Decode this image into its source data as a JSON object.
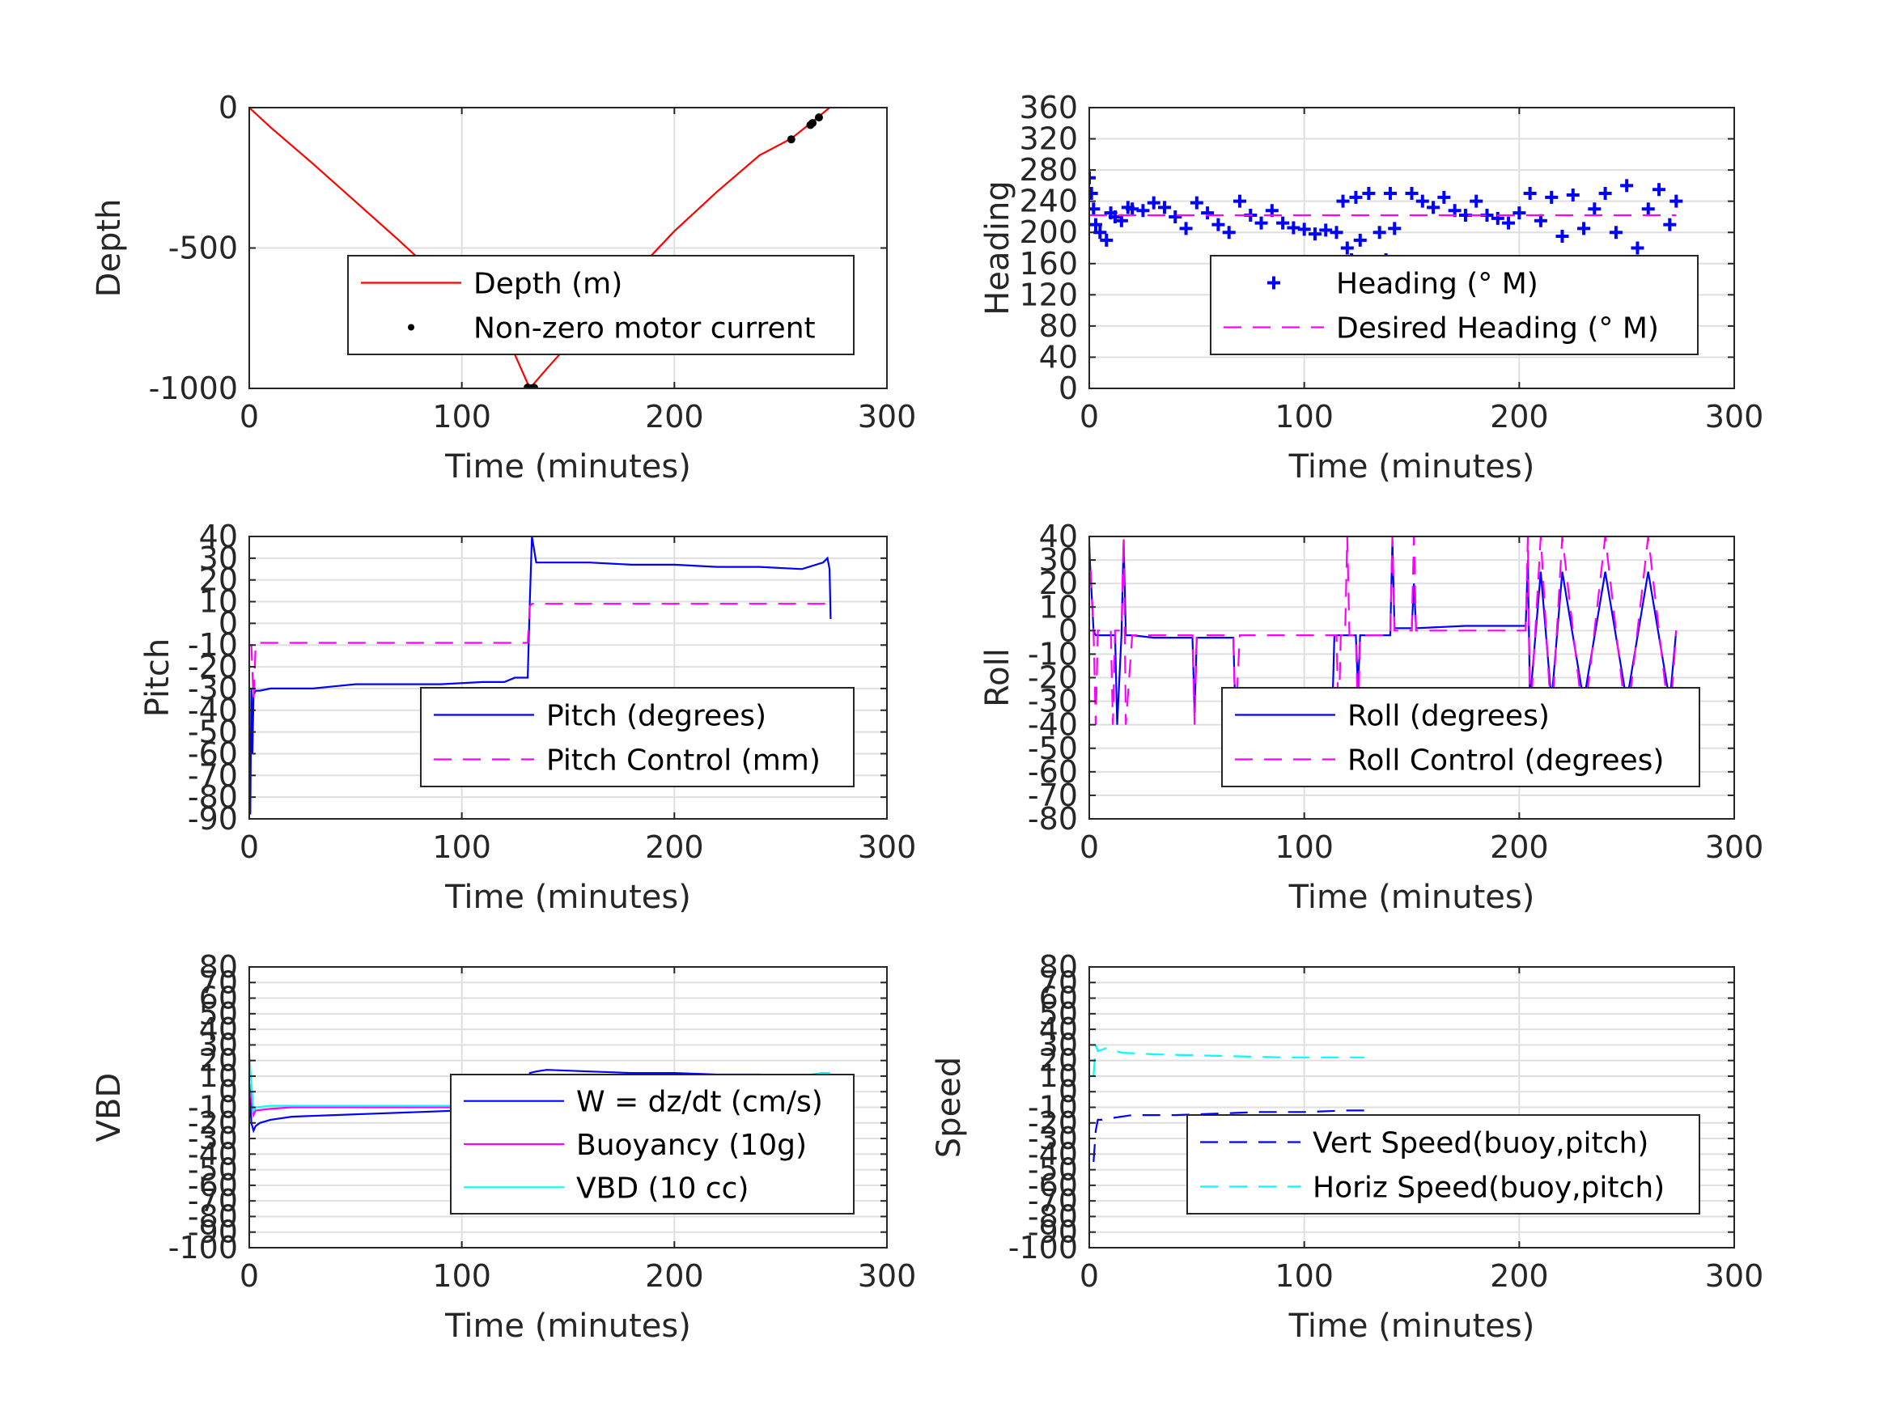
{
  "figure": {
    "background": "#ffffff",
    "colors": {
      "red": "#ff0000",
      "blue": "#0000ff",
      "magenta": "#ff00ff",
      "cyan": "#00ffff",
      "black": "#000000",
      "grid": "#dfdfdf",
      "axis": "#262626"
    }
  },
  "chart_data": [
    {
      "id": "depth",
      "type": "line",
      "xlabel": "Time (minutes)",
      "ylabel": "Depth",
      "xlim": [
        0,
        300
      ],
      "ylim": [
        -1000,
        0
      ],
      "xticks": [
        0,
        100,
        200,
        300
      ],
      "yticks": [
        -1000,
        -500,
        0
      ],
      "grid": true,
      "legend_position": "center-bottom",
      "series": [
        {
          "name": "Depth (m)",
          "style": "solid",
          "color": "#ff0000",
          "x": [
            0,
            10,
            30,
            50,
            70,
            90,
            110,
            125,
            132,
            140,
            160,
            180,
            200,
            220,
            240,
            255,
            265,
            273
          ],
          "y": [
            0,
            -70,
            -200,
            -335,
            -470,
            -610,
            -760,
            -880,
            -1000,
            -930,
            -760,
            -600,
            -440,
            -300,
            -170,
            -110,
            -50,
            0
          ]
        },
        {
          "name": "Non-zero motor current",
          "style": "dots",
          "color": "#000000",
          "x": [
            131,
            132,
            133,
            134,
            255,
            264,
            265,
            268
          ],
          "y": [
            -997,
            -1000,
            -1000,
            -998,
            -113,
            -62,
            -55,
            -35
          ]
        }
      ]
    },
    {
      "id": "heading",
      "type": "scatter",
      "xlabel": "Time (minutes)",
      "ylabel": "Heading",
      "xlim": [
        0,
        300
      ],
      "ylim": [
        0,
        360
      ],
      "xticks": [
        0,
        100,
        200,
        300
      ],
      "yticks": [
        0,
        40,
        80,
        120,
        160,
        200,
        240,
        280,
        320,
        360
      ],
      "grid": true,
      "legend_position": "lower-right",
      "series": [
        {
          "name": "Heading (° M)",
          "style": "plus",
          "color": "#0000ff",
          "x": [
            0,
            1,
            2,
            3,
            5,
            8,
            10,
            12,
            15,
            18,
            20,
            25,
            30,
            35,
            40,
            45,
            50,
            55,
            60,
            65,
            70,
            75,
            80,
            85,
            90,
            95,
            100,
            105,
            110,
            115,
            118,
            120,
            122,
            124,
            126,
            130,
            135,
            138,
            140,
            142,
            145,
            148,
            150,
            155,
            160,
            165,
            170,
            175,
            180,
            185,
            190,
            195,
            200,
            205,
            210,
            215,
            220,
            225,
            230,
            235,
            240,
            245,
            250,
            255,
            260,
            265,
            270,
            273
          ],
          "y": [
            270,
            250,
            230,
            210,
            200,
            190,
            225,
            220,
            215,
            232,
            230,
            228,
            238,
            232,
            220,
            205,
            238,
            225,
            210,
            200,
            240,
            222,
            212,
            228,
            212,
            206,
            204,
            198,
            203,
            200,
            240,
            180,
            165,
            245,
            190,
            250,
            200,
            165,
            250,
            205,
            160,
            150,
            250,
            240,
            232,
            245,
            228,
            222,
            240,
            222,
            218,
            212,
            225,
            250,
            215,
            245,
            195,
            248,
            205,
            230,
            250,
            200,
            260,
            180,
            230,
            255,
            210,
            240
          ]
        },
        {
          "name": "Desired Heading (° M)",
          "style": "dashed",
          "color": "#ff00ff",
          "x": [
            0,
            273
          ],
          "y": [
            222,
            222
          ]
        }
      ]
    },
    {
      "id": "pitch",
      "type": "line",
      "xlabel": "Time (minutes)",
      "ylabel": "Pitch",
      "xlim": [
        0,
        300
      ],
      "ylim": [
        -90,
        40
      ],
      "xticks": [
        0,
        100,
        200,
        300
      ],
      "yticks": [
        -90,
        -80,
        -70,
        -60,
        -50,
        -40,
        -30,
        -20,
        -10,
        0,
        10,
        20,
        30,
        40
      ],
      "grid": true,
      "legend_position": "lower-right",
      "series": [
        {
          "name": "Pitch (degrees)",
          "style": "solid",
          "color": "#0000ff",
          "x": [
            0,
            0.5,
            1,
            1.5,
            2,
            3,
            5,
            10,
            20,
            30,
            40,
            50,
            70,
            90,
            110,
            120,
            125,
            128,
            131,
            132,
            133,
            135,
            140,
            160,
            180,
            200,
            220,
            240,
            260,
            270,
            272,
            273,
            273.5
          ],
          "y": [
            -80,
            -88,
            -30,
            -60,
            -33,
            -31,
            -31,
            -30,
            -30,
            -30,
            -29,
            -28,
            -28,
            -28,
            -27,
            -27,
            -25,
            -25,
            -25,
            10,
            40,
            28,
            28,
            28,
            27,
            27,
            26,
            26,
            25,
            28,
            30,
            25,
            2
          ]
        },
        {
          "name": "Pitch Control (mm)",
          "style": "dashed",
          "color": "#ff00ff",
          "x": [
            0,
            1,
            2,
            3,
            4,
            10,
            50,
            100,
            129,
            130,
            131,
            132,
            133,
            140,
            180,
            220,
            260,
            273
          ],
          "y": [
            -10,
            -10,
            -35,
            -10,
            -9,
            -9,
            -9,
            -9,
            -9,
            -9,
            -9,
            8,
            9,
            9,
            9,
            9,
            9,
            9
          ]
        }
      ]
    },
    {
      "id": "roll",
      "type": "line",
      "xlabel": "Time (minutes)",
      "ylabel": "Roll",
      "xlim": [
        0,
        300
      ],
      "ylim": [
        -80,
        40
      ],
      "xticks": [
        0,
        100,
        200,
        300
      ],
      "yticks": [
        -80,
        -70,
        -60,
        -50,
        -40,
        -30,
        -20,
        -10,
        0,
        10,
        20,
        30,
        40
      ],
      "grid": true,
      "legend_position": "lower-right",
      "series": [
        {
          "name": "Roll (degrees)",
          "style": "solid",
          "color": "#0000ff",
          "x": [
            0,
            2,
            3,
            5,
            10,
            12,
            13,
            15,
            16,
            17,
            20,
            30,
            40,
            48,
            49,
            50,
            60,
            67,
            68,
            70,
            80,
            100,
            113,
            114,
            116,
            119,
            120,
            124,
            125,
            126,
            140,
            141,
            142,
            150,
            151,
            152,
            175,
            180,
            200,
            203,
            204,
            205,
            210,
            215,
            220,
            230,
            240,
            250,
            260,
            270,
            273
          ],
          "y": [
            35,
            0,
            -2,
            -2,
            -2,
            -2,
            -40,
            -2,
            38,
            -2,
            -2,
            -3,
            -3,
            -3,
            -35,
            -3,
            -3,
            -3,
            -36,
            -36,
            -36,
            -36,
            -36,
            -2,
            -2,
            -2,
            -2,
            -2,
            -25,
            -2,
            -2,
            38,
            1,
            1,
            20,
            1,
            2,
            2,
            2,
            2,
            30,
            -30,
            25,
            -30,
            25,
            -30,
            25,
            -30,
            25,
            -30,
            0
          ]
        },
        {
          "name": "Roll Control (degrees)",
          "style": "dashed",
          "color": "#ff00ff",
          "x": [
            0,
            2,
            3,
            4,
            10,
            11,
            12,
            15,
            16,
            17,
            20,
            40,
            48,
            49,
            50,
            60,
            67,
            68,
            70,
            100,
            115,
            116,
            117,
            119,
            120,
            121,
            124,
            125,
            126,
            140,
            141,
            142,
            150,
            151,
            152,
            200,
            203,
            204,
            205,
            210,
            215,
            220,
            230,
            240,
            250,
            260,
            270,
            273
          ],
          "y": [
            38,
            0,
            -40,
            0,
            0,
            -40,
            0,
            0,
            40,
            -40,
            -2,
            -2,
            -2,
            -40,
            -2,
            -2,
            -2,
            -40,
            -2,
            -2,
            -2,
            -40,
            -2,
            -2,
            40,
            -2,
            -2,
            -40,
            -2,
            -2,
            40,
            0,
            0,
            40,
            0,
            0,
            0,
            40,
            -40,
            40,
            -40,
            40,
            -40,
            40,
            -40,
            40,
            -40,
            0
          ]
        }
      ]
    },
    {
      "id": "vbd",
      "type": "line",
      "xlabel": "Time (minutes)",
      "ylabel": "VBD",
      "xlim": [
        0,
        300
      ],
      "ylim": [
        -100,
        80
      ],
      "xticks": [
        0,
        100,
        200,
        300
      ],
      "yticks": [
        -100,
        -90,
        -80,
        -70,
        -60,
        -50,
        -40,
        -30,
        -20,
        -10,
        0,
        10,
        20,
        30,
        40,
        50,
        60,
        70,
        80
      ],
      "ytick_labels": [
        "-100",
        "-90",
        "-80",
        "-70",
        "-60",
        "-50",
        "-40",
        "-30",
        "-20",
        "-10",
        "0",
        "10",
        "20",
        "30",
        "40",
        "50",
        "60",
        "70",
        "80"
      ],
      "grid": true,
      "legend_position": "lower-right",
      "series": [
        {
          "name": "W = dz/dt (cm/s)",
          "style": "solid",
          "color": "#0000ff",
          "x": [
            0,
            1,
            2,
            3,
            5,
            10,
            20,
            40,
            60,
            80,
            100,
            120,
            130,
            131,
            132,
            135,
            140,
            160,
            180,
            200,
            220,
            240,
            260,
            270,
            273
          ],
          "y": [
            5,
            -20,
            -25,
            -22,
            -20,
            -18,
            -16,
            -15,
            -14,
            -13,
            -12,
            -11,
            -11,
            0,
            12,
            13,
            14,
            13,
            12,
            12,
            11,
            11,
            10,
            12,
            8
          ]
        },
        {
          "name": "Buoyancy (10g)",
          "style": "solid",
          "color": "#ff00ff",
          "x": [
            0,
            2,
            3,
            10,
            20,
            273
          ],
          "y": [
            5,
            -15,
            -12,
            -11,
            -10,
            -10
          ]
        },
        {
          "name": "VBD (10 cc)",
          "style": "solid",
          "color": "#00ffff",
          "x": [
            0,
            1,
            2,
            3,
            10,
            50,
            100,
            130,
            132,
            133,
            140,
            200,
            260,
            270,
            273
          ],
          "y": [
            25,
            5,
            -12,
            -10,
            -9,
            -9,
            -9,
            -9,
            0,
            10,
            10,
            10,
            10,
            12,
            12
          ]
        }
      ]
    },
    {
      "id": "speed",
      "type": "line",
      "xlabel": "Time (minutes)",
      "ylabel": "Speed",
      "xlim": [
        0,
        300
      ],
      "ylim": [
        -100,
        80
      ],
      "xticks": [
        0,
        100,
        200,
        300
      ],
      "yticks": [
        -100,
        -90,
        -80,
        -70,
        -60,
        -50,
        -40,
        -30,
        -20,
        -10,
        0,
        10,
        20,
        30,
        40,
        50,
        60,
        70,
        80
      ],
      "ytick_labels": [
        "-100",
        "-90",
        "-80",
        "-70",
        "-60",
        "-50",
        "-40",
        "-30",
        "-20",
        "-10",
        "0",
        "10",
        "20",
        "30",
        "40",
        "50",
        "60",
        "70",
        "80"
      ],
      "grid": true,
      "legend_position": "lower-right",
      "series": [
        {
          "name": "Vert Speed(buoy,pitch)",
          "style": "dashed",
          "color": "#0000ff",
          "x": [
            2,
            3,
            4,
            6,
            10,
            20,
            40,
            60,
            80,
            100,
            120,
            128
          ],
          "y": [
            -45,
            -25,
            -18,
            -18,
            -17,
            -15,
            -15,
            -14,
            -13,
            -13,
            -12,
            -12
          ]
        },
        {
          "name": "Horiz Speed(buoy,pitch)",
          "style": "dashed",
          "color": "#00ffff",
          "x": [
            2,
            3,
            4,
            8,
            15,
            30,
            60,
            90,
            110,
            128
          ],
          "y": [
            10,
            30,
            26,
            28,
            25,
            24,
            23,
            22,
            22,
            22
          ]
        }
      ]
    }
  ]
}
